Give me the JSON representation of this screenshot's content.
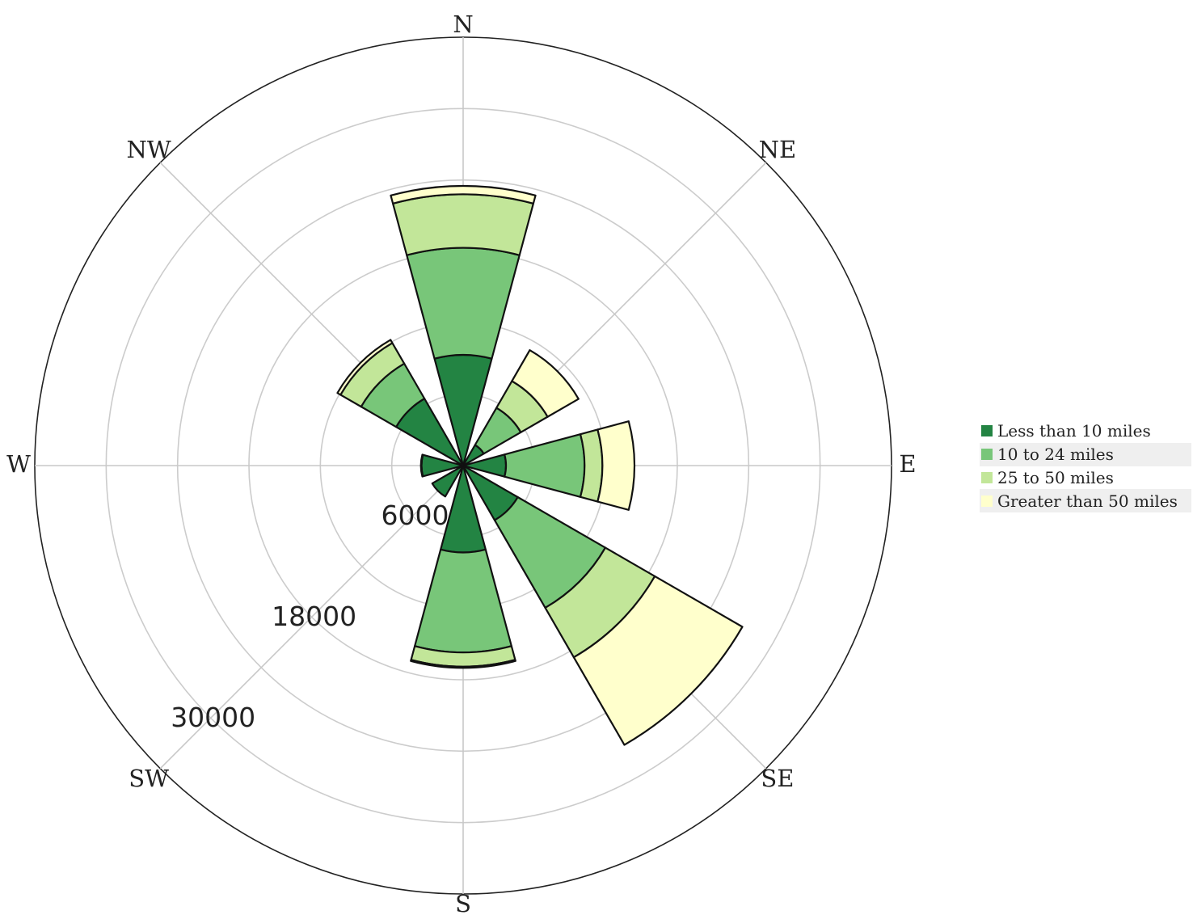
{
  "chart_data": {
    "type": "barpolar",
    "title": "",
    "directions": [
      "N",
      "NE",
      "E",
      "SE",
      "S",
      "SW",
      "W",
      "NW"
    ],
    "radial_axis": {
      "range": [
        0,
        36000
      ],
      "grid_values": [
        6000,
        12000,
        18000,
        24000,
        30000,
        36000
      ],
      "tick_labels": [
        "6000",
        "18000",
        "30000"
      ],
      "tick_angle_deg": 225,
      "grid": true
    },
    "angular_axis": {
      "direction": "clockwise",
      "rotation": "N at top",
      "grid": true
    },
    "series": [
      {
        "name": "Less than 10 miles",
        "color": "#238443",
        "values": [
          9300,
          2000,
          3600,
          5300,
          7300,
          3000,
          3500,
          6500
        ]
      },
      {
        "name": "10 to 24 miles",
        "color": "#78c679",
        "values": [
          9000,
          3600,
          6600,
          8500,
          8400,
          0,
          0,
          3400
        ]
      },
      {
        "name": "25 to 50 miles",
        "color": "#c2e699",
        "values": [
          4500,
          2600,
          1500,
          4800,
          1200,
          0,
          0,
          2000
        ]
      },
      {
        "name": "Greater than 50 miles",
        "color": "#ffffcc",
        "values": [
          700,
          3000,
          2700,
          8500,
          100,
          0,
          50,
          300
        ]
      }
    ],
    "legend": {
      "position": "right",
      "item_shading": "#efefef"
    }
  }
}
